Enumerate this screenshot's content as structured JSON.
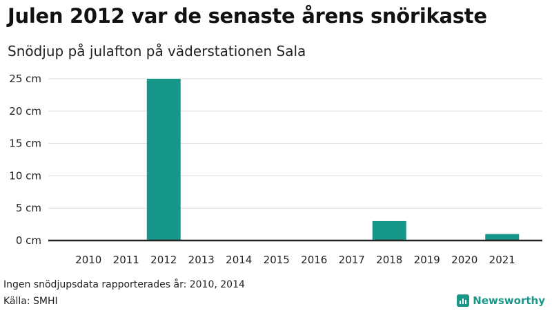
{
  "header": {
    "title": "Julen 2012 var de senaste årens snörikaste",
    "subtitle": "Snödjup på julafton på väderstationen Sala"
  },
  "footer": {
    "note": "Ingen snödjupsdata rapporterades år: 2010, 2014",
    "source": "Källa: SMHI",
    "brand": "Newsworthy",
    "brand_icon": "bar-chart-icon"
  },
  "colors": {
    "bar": "#16978a",
    "grid": "#dddddd",
    "baseline": "#222222",
    "brand": "#1b9687"
  },
  "chart_data": {
    "type": "bar",
    "categories": [
      "2010",
      "2011",
      "2012",
      "2013",
      "2014",
      "2015",
      "2016",
      "2017",
      "2018",
      "2019",
      "2020",
      "2021"
    ],
    "values": [
      null,
      0,
      25,
      0,
      null,
      0,
      0,
      0,
      3,
      0,
      0,
      1
    ],
    "title": "Julen 2012 var de senaste årens snörikaste",
    "subtitle": "Snödjup på julafton på väderstationen Sala",
    "xlabel": "",
    "ylabel": "",
    "ylim": [
      0,
      25
    ],
    "yticks": [
      0,
      5,
      10,
      15,
      20,
      25
    ],
    "ytick_labels": [
      "0 cm",
      "5 cm",
      "10 cm",
      "15 cm",
      "20 cm",
      "25 cm"
    ],
    "grid": true,
    "legend": "none"
  }
}
